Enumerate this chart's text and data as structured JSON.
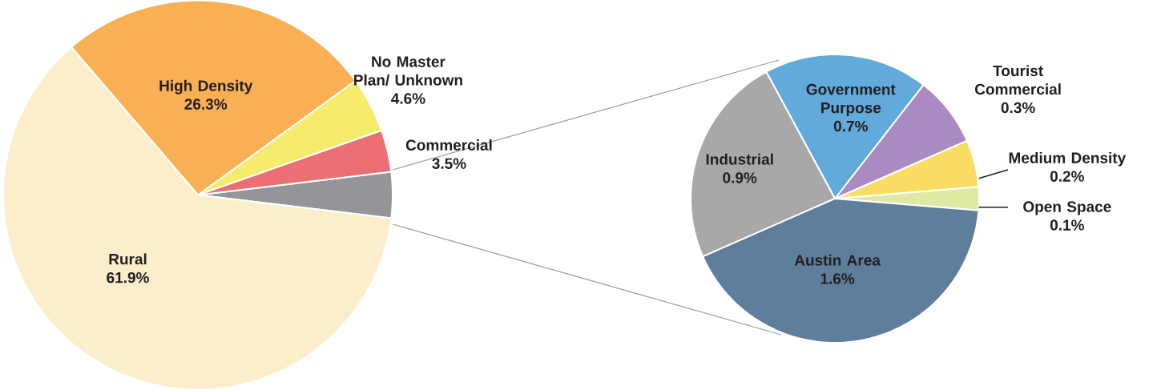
{
  "chart_data": [
    {
      "type": "pie",
      "categories": [
        null,
        "Commercial",
        "No Master Plan/ Unknown",
        "High Density",
        "Rural"
      ],
      "values": [
        3.8,
        3.5,
        4.6,
        26.3,
        61.9
      ],
      "value_labels": [
        null,
        "3.5%",
        "4.6%",
        "26.3%",
        "61.9%"
      ],
      "colors": [
        "#939598",
        "#ec6f74",
        "#f5ec6c",
        "#f9b054",
        "#fdeecb"
      ]
    },
    {
      "type": "pie",
      "categories": [
        "Open Space",
        "Medium Density",
        "Tourist Commercial",
        "Government Purpose",
        "Industrial",
        "Austin Area"
      ],
      "values": [
        0.1,
        0.2,
        0.3,
        0.7,
        0.9,
        1.6
      ],
      "value_labels": [
        "0.1%",
        "0.2%",
        "0.3%",
        "0.7%",
        "0.9%",
        "1.6%"
      ],
      "colors": [
        "#dfe9a3",
        "#f9dd63",
        "#ab89c1",
        "#62a9dc",
        "#a8a8a8",
        "#5e7e9c"
      ]
    }
  ]
}
